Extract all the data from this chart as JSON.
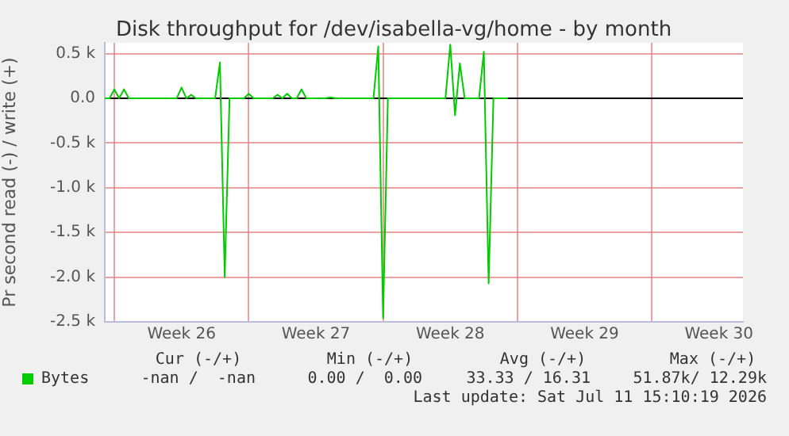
{
  "chart_data": {
    "type": "line",
    "title": "Disk throughput for /dev/isabella-vg/home - by month",
    "ylabel": "Pr second read (-) / write (+)",
    "categories": [
      null,
      null,
      null,
      null,
      null,
      null,
      null,
      null,
      null,
      null,
      null,
      null,
      null,
      null,
      null,
      null,
      "Week 26",
      null,
      null,
      null,
      null,
      null,
      null,
      null,
      null,
      null,
      null,
      null,
      null,
      null,
      null,
      null,
      null,
      null,
      null,
      null,
      null,
      null,
      null,
      null,
      null,
      null,
      null,
      null,
      "Week 27",
      null,
      null,
      null,
      null,
      null,
      null,
      null,
      null,
      null,
      null,
      null,
      null,
      null,
      null,
      null,
      null,
      null,
      null,
      null,
      null,
      null,
      null,
      null,
      null,
      null,
      null,
      null,
      "Week 28",
      null,
      null,
      null,
      null,
      null,
      null,
      null,
      null,
      null,
      null,
      null,
      null,
      null,
      null,
      null,
      null,
      null,
      null,
      null,
      null,
      null,
      null,
      null,
      null,
      null,
      null,
      null,
      "Week 29",
      null,
      null,
      null,
      null,
      null,
      null,
      null,
      null,
      null,
      null,
      null,
      null,
      null,
      null,
      null,
      null,
      null,
      null,
      null,
      null,
      null,
      null,
      null,
      null,
      null,
      null,
      null,
      "Week 30",
      null,
      null,
      null,
      null,
      null
    ],
    "series": [
      {
        "name": "Bytes",
        "color": "#00cc00",
        "values": [
          0,
          0,
          100,
          0,
          100,
          0,
          0,
          0,
          0,
          0,
          0,
          0,
          0,
          0,
          0,
          0,
          120,
          0,
          40,
          0,
          0,
          0,
          0,
          0,
          400,
          -2000,
          0,
          0,
          0,
          0,
          50,
          0,
          0,
          0,
          0,
          0,
          40,
          0,
          50,
          0,
          0,
          100,
          0,
          0,
          0,
          0,
          0,
          10,
          0,
          0,
          0,
          0,
          0,
          0,
          0,
          0,
          0,
          580,
          -2460,
          0,
          0,
          0,
          0,
          0,
          0,
          0,
          0,
          0,
          0,
          0,
          0,
          0,
          600,
          -190,
          390,
          0,
          0,
          0,
          0,
          520,
          -2070,
          0,
          0,
          0,
          0,
          null,
          null,
          null,
          null,
          null,
          null,
          null,
          null,
          null,
          null,
          null,
          null,
          null,
          null,
          null,
          null,
          null,
          null,
          null,
          null,
          null,
          null,
          null,
          null,
          null,
          null,
          null,
          null,
          null,
          null,
          null,
          null,
          null,
          null,
          null,
          null,
          null,
          null,
          null,
          null,
          null,
          null,
          null,
          null,
          null,
          null,
          null,
          null,
          null
        ]
      }
    ],
    "ylim": [
      -2500,
      620
    ],
    "yticks": [
      {
        "value": -2500,
        "label": "-2.5 k"
      },
      {
        "value": -2000,
        "label": "-2.0 k"
      },
      {
        "value": -1500,
        "label": "-1.5 k"
      },
      {
        "value": -1000,
        "label": "-1.0 k"
      },
      {
        "value": -500,
        "label": "-0.5 k"
      },
      {
        "value": 0,
        "label": "0.0"
      },
      {
        "value": 500,
        "label": "0.5 k"
      }
    ],
    "grid": true,
    "legend": "bottom left",
    "marker": "none",
    "annotations": [
      "Cur (-/+)",
      "Min (-/+)",
      "Avg (-/+)",
      "Max (-/+)",
      "-nan /  -nan",
      "0.00 /  0.00",
      "33.33 / 16.31",
      "51.87k/ 12.29k",
      "Last update: Sat Jul 11 15:10:19 2026"
    ]
  }
}
